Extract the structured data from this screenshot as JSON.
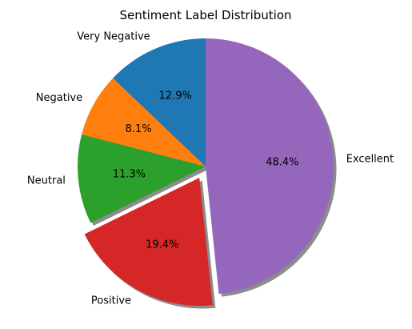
{
  "chart_data": {
    "type": "pie",
    "title": "Sentiment Label Distribution",
    "slices": [
      {
        "label": "Very Negative",
        "value": 12.9,
        "pct_label": "12.9%",
        "color": "#1f77b4",
        "exploded": false
      },
      {
        "label": "Negative",
        "value": 8.1,
        "pct_label": "8.1%",
        "color": "#ff7f0e",
        "exploded": false
      },
      {
        "label": "Neutral",
        "value": 11.3,
        "pct_label": "11.3%",
        "color": "#2ca02c",
        "exploded": false
      },
      {
        "label": "Positive",
        "value": 19.4,
        "pct_label": "19.4%",
        "color": "#d62728",
        "exploded": true
      },
      {
        "label": "Excellent",
        "value": 48.4,
        "pct_label": "48.4%",
        "color": "#9467bd",
        "exploded": false
      }
    ],
    "start_angle_deg": 90,
    "direction": "counterclockwise",
    "shadow": true
  }
}
